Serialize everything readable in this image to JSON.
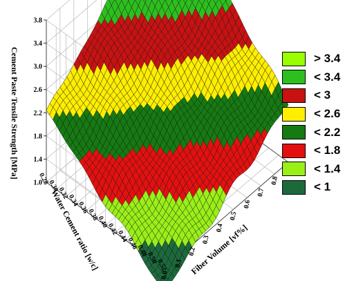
{
  "chart_data": {
    "type": "surface",
    "zlabel": "Cement Paste Tensile Strength [MPa]",
    "xlabel": "Fiber Volume [vf%]",
    "ylabel": "Water Cement ratio [w/c]",
    "x_ticks": [
      "0.0",
      "0.1",
      "0.2",
      "0.3",
      "0.4",
      "0.5",
      "0.6",
      "0.7",
      "0.8",
      "0.9"
    ],
    "y_ticks": [
      "0.28",
      "0.30",
      "0.32",
      "0.34",
      "0.36",
      "0.38",
      "0.40",
      "0.42",
      "0.44",
      "0.46",
      "0.48",
      "0.50",
      "0.52"
    ],
    "z_ticks": [
      "1.0",
      "1.4",
      "1.8",
      "2.2",
      "2.6",
      "3.0",
      "3.4",
      "3.8"
    ],
    "xlim": [
      0.0,
      0.9
    ],
    "ylim": [
      0.28,
      0.52
    ],
    "zlim": [
      1.0,
      3.8
    ],
    "corner_values": [
      {
        "vf": 0.0,
        "wc": 0.28,
        "strength": 2.2
      },
      {
        "vf": 0.9,
        "wc": 0.28,
        "strength": 4.2
      },
      {
        "vf": 0.0,
        "wc": 0.52,
        "strength": 0.6
      },
      {
        "vf": 0.9,
        "wc": 0.52,
        "strength": 2.0
      }
    ],
    "legend": [
      {
        "label": "> 3.4",
        "color": "#99ff00"
      },
      {
        "label": "< 3.4",
        "color": "#2dbf1e"
      },
      {
        "label": "< 3",
        "color": "#c81212"
      },
      {
        "label": "< 2.6",
        "color": "#ffee00"
      },
      {
        "label": "< 2.2",
        "color": "#157a12"
      },
      {
        "label": "< 1.8",
        "color": "#e41010"
      },
      {
        "label": "< 1.4",
        "color": "#9aef18"
      },
      {
        "label": "< 1",
        "color": "#1c6a3c"
      }
    ],
    "grid": true
  }
}
